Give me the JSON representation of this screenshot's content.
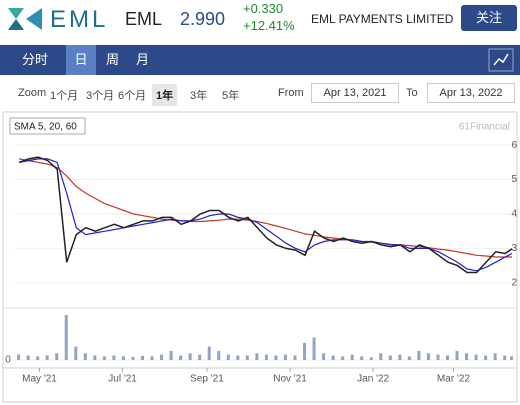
{
  "header": {
    "logo": "EML",
    "symbol": "EML",
    "price": "2.990",
    "change": "+0.330",
    "change_pct": "+12.41%",
    "company": "EML PAYMENTS LIMITED",
    "follow": "关注"
  },
  "tabs": [
    "分时",
    "日",
    "周",
    "月"
  ],
  "zoom": {
    "label": "Zoom",
    "options": [
      "1个月",
      "3个月",
      "6个月",
      "1年",
      "3年",
      "5年"
    ],
    "from_label": "From",
    "from": "Apr 13, 2021",
    "to_label": "To",
    "to": "Apr 13, 2022"
  },
  "chart_data": {
    "type": "line",
    "legend": "SMA 5, 20, 60",
    "watermark": "61Financial",
    "x": [
      "2021-04-16",
      "2021-04-23",
      "2021-04-30",
      "2021-05-07",
      "2021-05-14",
      "2021-05-21",
      "2021-05-28",
      "2021-06-04",
      "2021-06-11",
      "2021-06-18",
      "2021-06-25",
      "2021-07-02",
      "2021-07-09",
      "2021-07-16",
      "2021-07-23",
      "2021-07-30",
      "2021-08-06",
      "2021-08-13",
      "2021-08-20",
      "2021-08-27",
      "2021-09-03",
      "2021-09-10",
      "2021-09-17",
      "2021-09-24",
      "2021-10-01",
      "2021-10-08",
      "2021-10-15",
      "2021-10-22",
      "2021-10-29",
      "2021-11-05",
      "2021-11-12",
      "2021-11-19",
      "2021-11-26",
      "2021-12-03",
      "2021-12-10",
      "2021-12-17",
      "2021-12-24",
      "2021-12-31",
      "2022-01-07",
      "2022-01-14",
      "2022-01-21",
      "2022-01-28",
      "2022-02-04",
      "2022-02-11",
      "2022-02-18",
      "2022-02-25",
      "2022-03-04",
      "2022-03-11",
      "2022-03-18",
      "2022-03-25",
      "2022-04-01",
      "2022-04-08",
      "2022-04-13"
    ],
    "series": [
      {
        "color": "#222222",
        "values": [
          5.5,
          5.6,
          5.65,
          5.55,
          5.3,
          2.6,
          3.4,
          3.6,
          3.5,
          3.6,
          3.7,
          3.6,
          3.7,
          3.8,
          3.8,
          3.9,
          3.9,
          3.7,
          3.8,
          4.0,
          4.1,
          4.1,
          3.9,
          3.8,
          3.9,
          3.6,
          3.3,
          3.1,
          3.0,
          2.95,
          2.8,
          3.5,
          3.3,
          3.2,
          3.3,
          3.2,
          3.15,
          3.2,
          3.1,
          3.05,
          3.1,
          2.9,
          3.1,
          3.0,
          2.8,
          2.6,
          2.5,
          2.3,
          2.3,
          2.6,
          2.9,
          2.85,
          2.99
        ]
      },
      {
        "color": "#2222cc",
        "values": [
          5.5,
          5.55,
          5.6,
          5.6,
          5.5,
          4.6,
          3.6,
          3.4,
          3.45,
          3.5,
          3.55,
          3.6,
          3.65,
          3.7,
          3.75,
          3.8,
          3.85,
          3.8,
          3.8,
          3.85,
          3.95,
          4.0,
          4.0,
          3.9,
          3.85,
          3.75,
          3.55,
          3.35,
          3.15,
          3.0,
          2.9,
          3.1,
          3.2,
          3.25,
          3.25,
          3.25,
          3.2,
          3.2,
          3.15,
          3.1,
          3.1,
          3.0,
          3.0,
          3.0,
          2.9,
          2.75,
          2.6,
          2.4,
          2.35,
          2.45,
          2.6,
          2.75,
          2.85
        ]
      },
      {
        "color": "#c0392b",
        "values": [
          5.6,
          5.55,
          5.5,
          5.45,
          5.35,
          5.1,
          4.8,
          4.6,
          4.45,
          4.3,
          4.2,
          4.1,
          4.0,
          3.95,
          3.9,
          3.85,
          3.82,
          3.8,
          3.78,
          3.78,
          3.8,
          3.82,
          3.85,
          3.85,
          3.82,
          3.78,
          3.72,
          3.65,
          3.58,
          3.5,
          3.42,
          3.38,
          3.33,
          3.3,
          3.27,
          3.24,
          3.2,
          3.18,
          3.15,
          3.12,
          3.1,
          3.08,
          3.05,
          3.02,
          2.98,
          2.95,
          2.9,
          2.85,
          2.8,
          2.78,
          2.75,
          2.75,
          2.75
        ]
      }
    ],
    "volume": {
      "color": "#8fa3c8",
      "values": [
        12,
        10,
        8,
        10,
        15,
        100,
        30,
        15,
        10,
        8,
        10,
        8,
        7,
        9,
        8,
        12,
        20,
        10,
        15,
        12,
        30,
        20,
        12,
        10,
        10,
        15,
        12,
        10,
        12,
        10,
        38,
        50,
        15,
        10,
        8,
        12,
        8,
        6,
        15,
        10,
        12,
        8,
        20,
        15,
        12,
        10,
        20,
        15,
        12,
        10,
        15,
        10,
        8
      ],
      "ylim": [
        0,
        100
      ],
      "yticks": [
        0
      ]
    },
    "xlim": [
      "2021-04-13",
      "2022-04-13"
    ],
    "xticks": [
      {
        "value": "2021-05-01",
        "label": "May '21"
      },
      {
        "value": "2021-07-01",
        "label": "Jul '21"
      },
      {
        "value": "2021-09-01",
        "label": "Sep '21"
      },
      {
        "value": "2021-11-01",
        "label": "Nov '21"
      },
      {
        "value": "2022-01-01",
        "label": "Jan '22"
      },
      {
        "value": "2022-03-01",
        "label": "Mar '22"
      }
    ],
    "ylim": [
      1.5,
      6.15
    ],
    "yticks": [
      2,
      3,
      4,
      5,
      6
    ],
    "grid": true
  }
}
